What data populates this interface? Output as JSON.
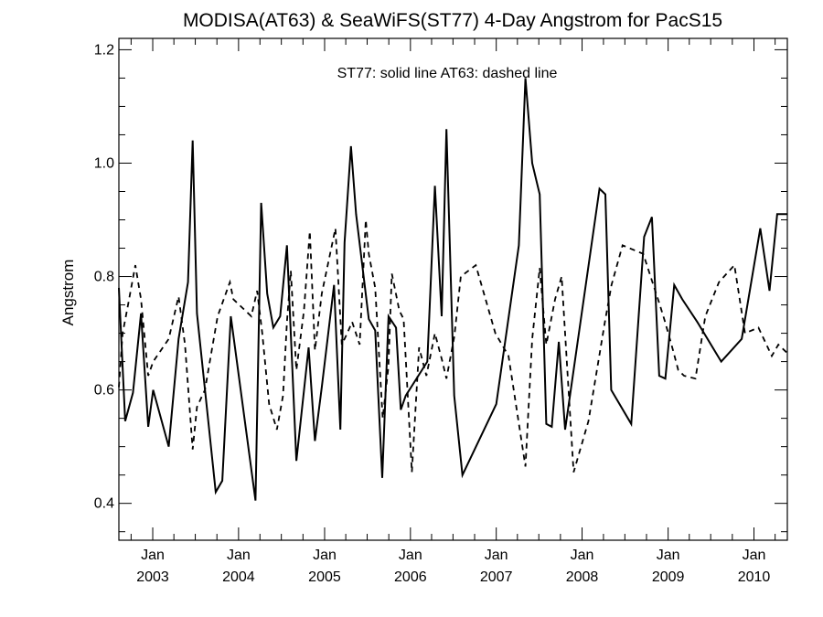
{
  "chart_data": {
    "type": "line",
    "title": "MODISA(AT63) & SeaWiFS(ST77) 4-Day Angstrom for PacS15",
    "annotation": "ST77: solid line   AT63: dashed line",
    "ylabel": "Angstrom",
    "ylim": [
      0.335,
      1.22
    ],
    "xlim": [
      "2002-08-10",
      "2010-05-23"
    ],
    "y_ticks": [
      "0.4",
      "0.6",
      "0.8",
      "1.0",
      "1.2"
    ],
    "x_ticks": [
      {
        "date": "2003-01-01",
        "month": "Jan",
        "year": "2003"
      },
      {
        "date": "2004-01-01",
        "month": "Jan",
        "year": "2004"
      },
      {
        "date": "2005-01-01",
        "month": "Jan",
        "year": "2005"
      },
      {
        "date": "2006-01-01",
        "month": "Jan",
        "year": "2006"
      },
      {
        "date": "2007-01-01",
        "month": "Jan",
        "year": "2007"
      },
      {
        "date": "2008-01-01",
        "month": "Jan",
        "year": "2008"
      },
      {
        "date": "2009-01-01",
        "month": "Jan",
        "year": "2009"
      },
      {
        "date": "2010-01-01",
        "month": "Jan",
        "year": "2010"
      }
    ],
    "grid": false,
    "series": [
      {
        "name": "ST77",
        "style": "solid",
        "color": "#000000",
        "x": [
          "2002-08-10",
          "2002-09-06",
          "2002-10-09",
          "2002-11-12",
          "2002-12-13",
          "2003-01-03",
          "2003-03-10",
          "2003-04-21",
          "2003-05-31",
          "2003-06-20",
          "2003-07-08",
          "2003-09-26",
          "2003-10-24",
          "2003-11-29",
          "2004-03-13",
          "2004-04-06",
          "2004-05-02",
          "2004-05-28",
          "2004-06-26",
          "2004-07-25",
          "2004-09-03",
          "2004-10-25",
          "2004-11-21",
          "2004-12-20",
          "2005-02-10",
          "2005-03-09",
          "2005-03-27",
          "2005-04-23",
          "2005-05-15",
          "2005-07-08",
          "2005-08-04",
          "2005-09-03",
          "2005-09-30",
          "2005-11-01",
          "2005-11-21",
          "2005-12-12",
          "2006-03-14",
          "2006-04-15",
          "2006-05-14",
          "2006-06-03",
          "2006-07-06",
          "2006-08-10",
          "2007-01-01",
          "2007-04-07",
          "2007-05-05",
          "2007-06-03",
          "2007-07-05",
          "2007-08-02",
          "2007-08-25",
          "2007-09-24",
          "2007-10-21",
          "2008-03-15",
          "2008-04-09",
          "2008-05-04",
          "2008-07-28",
          "2008-09-21",
          "2008-10-24",
          "2008-11-24",
          "2008-12-20",
          "2009-01-27",
          "2009-03-02",
          "2009-05-05",
          "2009-08-15",
          "2009-11-10",
          "2010-01-28",
          "2010-03-08",
          "2010-04-10",
          "2010-05-23"
        ],
        "values": [
          0.78,
          0.545,
          0.595,
          0.735,
          0.535,
          0.6,
          0.5,
          0.69,
          0.79,
          1.04,
          0.735,
          0.42,
          0.44,
          0.73,
          0.405,
          0.93,
          0.77,
          0.71,
          0.73,
          0.855,
          0.475,
          0.675,
          0.51,
          0.605,
          0.785,
          0.53,
          0.86,
          1.03,
          0.91,
          0.725,
          0.705,
          0.445,
          0.73,
          0.71,
          0.565,
          0.59,
          0.65,
          0.96,
          0.73,
          1.06,
          0.59,
          0.45,
          0.575,
          0.855,
          1.15,
          1.0,
          0.945,
          0.54,
          0.535,
          0.685,
          0.53,
          0.955,
          0.945,
          0.6,
          0.54,
          0.87,
          0.905,
          0.625,
          0.62,
          0.785,
          0.76,
          0.72,
          0.65,
          0.69,
          0.885,
          0.775,
          0.91,
          0.91
        ]
      },
      {
        "name": "AT63",
        "style": "dashed",
        "color": "#000000",
        "x": [
          "2002-08-10",
          "2002-08-26",
          "2002-09-18",
          "2002-10-19",
          "2002-11-12",
          "2002-12-13",
          "2003-01-03",
          "2003-03-10",
          "2003-04-21",
          "2003-05-18",
          "2003-06-20",
          "2003-07-08",
          "2003-08-11",
          "2003-10-04",
          "2003-11-25",
          "2003-12-10",
          "2004-02-24",
          "2004-03-20",
          "2004-04-11",
          "2004-05-10",
          "2004-06-12",
          "2004-07-08",
          "2004-07-25",
          "2004-08-10",
          "2004-09-03",
          "2004-10-05",
          "2004-10-30",
          "2004-11-21",
          "2004-12-20",
          "2005-02-16",
          "2005-03-15",
          "2005-04-07",
          "2005-04-28",
          "2005-05-30",
          "2005-06-25",
          "2005-07-08",
          "2005-08-04",
          "2005-09-05",
          "2005-09-29",
          "2005-10-14",
          "2005-11-15",
          "2005-12-03",
          "2006-01-07",
          "2006-02-07",
          "2006-03-10",
          "2006-04-15",
          "2006-05-17",
          "2006-06-03",
          "2006-07-07",
          "2006-08-03",
          "2006-10-06",
          "2006-12-28",
          "2007-02-22",
          "2007-05-05",
          "2007-06-03",
          "2007-07-05",
          "2007-08-02",
          "2007-09-08",
          "2007-10-06",
          "2007-10-31",
          "2007-11-26",
          "2008-01-28",
          "2008-04-07",
          "2008-05-05",
          "2008-06-21",
          "2008-09-17",
          "2008-11-27",
          "2008-12-19",
          "2009-01-22",
          "2009-02-13",
          "2009-03-10",
          "2009-04-27",
          "2009-06-08",
          "2009-08-05",
          "2009-10-10",
          "2009-11-24",
          "2010-01-20",
          "2010-03-18",
          "2010-04-15",
          "2010-05-23"
        ],
        "values": [
          0.605,
          0.7,
          0.75,
          0.82,
          0.76,
          0.625,
          0.65,
          0.69,
          0.765,
          0.68,
          0.495,
          0.57,
          0.6,
          0.73,
          0.79,
          0.76,
          0.73,
          0.775,
          0.7,
          0.575,
          0.53,
          0.59,
          0.72,
          0.81,
          0.635,
          0.74,
          0.88,
          0.67,
          0.77,
          0.885,
          0.68,
          0.7,
          0.72,
          0.68,
          0.9,
          0.84,
          0.78,
          0.55,
          0.64,
          0.805,
          0.74,
          0.725,
          0.455,
          0.675,
          0.625,
          0.7,
          0.65,
          0.62,
          0.695,
          0.8,
          0.82,
          0.7,
          0.66,
          0.465,
          0.69,
          0.815,
          0.68,
          0.76,
          0.8,
          0.63,
          0.455,
          0.545,
          0.72,
          0.785,
          0.855,
          0.84,
          0.75,
          0.72,
          0.67,
          0.635,
          0.625,
          0.62,
          0.73,
          0.79,
          0.82,
          0.7,
          0.71,
          0.66,
          0.68,
          0.665
        ]
      }
    ]
  }
}
